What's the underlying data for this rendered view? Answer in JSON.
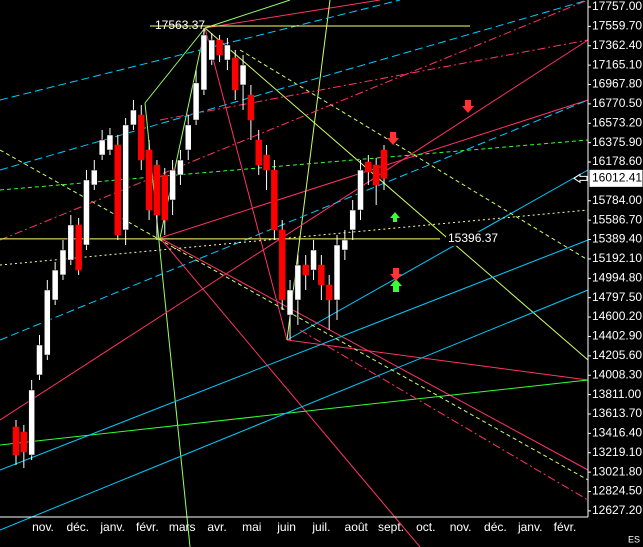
{
  "chart_data": {
    "type": "candlestick",
    "open": [
      13481,
      13430,
      13196,
      14011,
      14214,
      14774,
      15029,
      15181,
      15538,
      15334,
      15945,
      16250,
      16301,
      16352,
      15487,
      16556,
      16657,
      16301,
      16148,
      16047,
      15792,
      16047,
      16301,
      16606,
      16912,
      17217,
      17421,
      17217,
      17238,
      16963,
      16861,
      16403,
      16250,
      16097,
      15487,
      14621,
      14774,
      15130,
      15079,
      15130,
      14927,
      14774,
      15283,
      15487,
      15690,
      16179,
      16148,
      16301
    ],
    "high": [
      13552,
      13502,
      13960,
      14418,
      14978,
      15161,
      15385,
      15639,
      15609,
      16097,
      16199,
      16505,
      16525,
      16454,
      16627,
      16810,
      16759,
      16403,
      16199,
      16118,
      16199,
      16301,
      16657,
      17115,
      17543,
      17492,
      17472,
      17441,
      17319,
      17268,
      16963,
      16505,
      16352,
      16199,
      15588,
      14978,
      15232,
      15232,
      15385,
      15232,
      15029,
      15436,
      15487,
      15792,
      16199,
      16250,
      16220,
      16352
    ],
    "low": [
      13094,
      13064,
      13145,
      13960,
      14163,
      14723,
      14978,
      15130,
      15029,
      15283,
      15894,
      16199,
      16250,
      15385,
      15334,
      16505,
      16097,
      15588,
      15385,
      15436,
      15639,
      15945,
      16199,
      16556,
      16861,
      17166,
      17197,
      17115,
      16810,
      16708,
      16403,
      16047,
      15894,
      15385,
      14672,
      14367,
      14520,
      14876,
      14978,
      14774,
      14469,
      14570,
      15181,
      15385,
      15588,
      15945,
      15741,
      15894
    ],
    "close": [
      13196,
      13227,
      13858,
      14316,
      14876,
      15079,
      15283,
      15538,
      15079,
      15996,
      16097,
      16403,
      16454,
      15436,
      16556,
      16708,
      16199,
      15690,
      15639,
      15588,
      16097,
      16199,
      16556,
      16984,
      17472,
      17421,
      17268,
      17370,
      16912,
      17166,
      16606,
      16148,
      16097,
      15487,
      14774,
      14876,
      15130,
      15029,
      15283,
      14927,
      14774,
      15334,
      15385,
      15690,
      16097,
      16077,
      15945,
      16012.41
    ],
    "categories": [
      "nov.",
      "déc.",
      "janv.",
      "févr.",
      "mars",
      "avr.",
      "mai",
      "juin",
      "juil.",
      "août",
      "sept.",
      "oct.",
      "nov.",
      "déc.",
      "janv.",
      "févr."
    ],
    "ylim": [
      12565,
      17828
    ],
    "yticks": [
      {
        "value": 17757,
        "label": "17757.00"
      },
      {
        "value": 17559.7,
        "label": "17559.70"
      },
      {
        "value": 17362.4,
        "label": "17362.40"
      },
      {
        "value": 17165.1,
        "label": "17165.10"
      },
      {
        "value": 16967.8,
        "label": "16967.80"
      },
      {
        "value": 16770.5,
        "label": "16770.50"
      },
      {
        "value": 16573.2,
        "label": "16573.20"
      },
      {
        "value": 16375.9,
        "label": "16375.90"
      },
      {
        "value": 16178.6,
        "label": "16178.60"
      },
      {
        "value": 15784,
        "label": "15784.00"
      },
      {
        "value": 15586.7,
        "label": "15586.70"
      },
      {
        "value": 15389.4,
        "label": "15389.40"
      },
      {
        "value": 15192.1,
        "label": "15192.10"
      },
      {
        "value": 14994.8,
        "label": "14994.80"
      },
      {
        "value": 14797.5,
        "label": "14797.50"
      },
      {
        "value": 14600.2,
        "label": "14600.20"
      },
      {
        "value": 14402.9,
        "label": "14402.90"
      },
      {
        "value": 14205.6,
        "label": "14205.60"
      },
      {
        "value": 14008.3,
        "label": "14008.30"
      },
      {
        "value": 13811,
        "label": "13811.00"
      },
      {
        "value": 13613.7,
        "label": "13613.70"
      },
      {
        "value": 13416.4,
        "label": "13416.40"
      },
      {
        "value": 13219.1,
        "label": "13219.10"
      },
      {
        "value": 13021.8,
        "label": "13021.80"
      },
      {
        "value": 12824.5,
        "label": "12824.50"
      },
      {
        "value": 12627.2,
        "label": "12627.20"
      }
    ],
    "levels": [
      17563.37,
      15396.37
    ],
    "last_price": 16012.41,
    "symbol": "ES",
    "up_color": "#ffffff",
    "down_color": "#ff0000",
    "level_color": "#ffff66"
  }
}
